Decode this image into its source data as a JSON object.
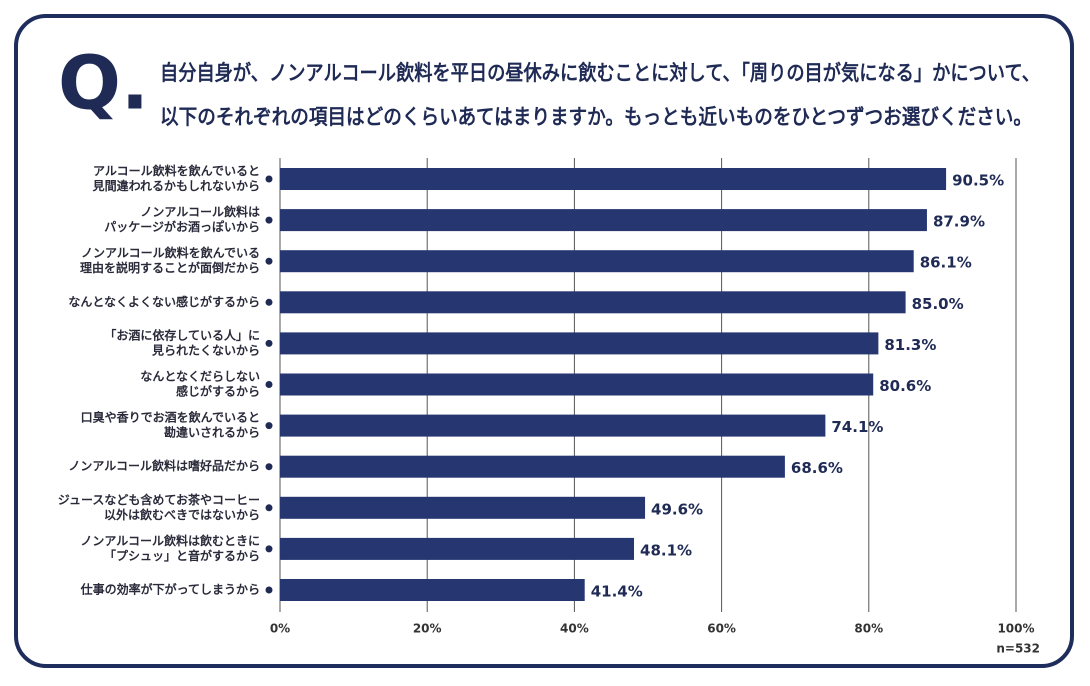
{
  "chart_data": {
    "type": "barh",
    "label": "Q.",
    "title": [
      "自分自身が、ノンアルコール飲料を平日の昼休みに飲むことに対して、「周りの目が気になる」かについて、",
      "以下のそれぞれの項目はどのくらいあてはまりますか。もっとも近いものをひとつずつお選びください。"
    ],
    "categories": [
      [
        "アルコール飲料を飲んでいると",
        "見間違われるかもしれないから"
      ],
      [
        "ノンアルコール飲料は",
        "パッケージがお酒っぽいから"
      ],
      [
        "ノンアルコール飲料を飲んでいる",
        "理由を説明することが面倒だから"
      ],
      [
        "なんとなくよくない感じがするから"
      ],
      [
        "「お酒に依存している人」に",
        "見られたくないから"
      ],
      [
        "なんとなくだらしない",
        "感じがするから"
      ],
      [
        "口臭や香りでお酒を飲んでいると",
        "勘違いされるから"
      ],
      [
        "ノンアルコール飲料は嗜好品だから"
      ],
      [
        "ジュースなども含めてお茶やコーヒー",
        "以外は飲むべきではないから"
      ],
      [
        "ノンアルコール飲料は飲むときに",
        "「プシュッ」と音がするから"
      ],
      [
        "仕事の効率が下がってしまうから"
      ]
    ],
    "values": [
      90.5,
      87.9,
      86.1,
      85.0,
      81.3,
      80.6,
      74.1,
      68.6,
      49.6,
      48.1,
      41.4
    ],
    "value_labels": [
      "90.5%",
      "87.9%",
      "86.1%",
      "85.0%",
      "81.3%",
      "80.6%",
      "74.1%",
      "68.6%",
      "49.6%",
      "48.1%",
      "41.4%"
    ],
    "color": "#253671",
    "xlim": [
      0,
      100
    ],
    "xticks": [
      {
        "value": 0,
        "label": "0%"
      },
      {
        "value": 20,
        "label": "20%"
      },
      {
        "value": 40,
        "label": "40%"
      },
      {
        "value": 60,
        "label": "60%"
      },
      {
        "value": 80,
        "label": "80%"
      },
      {
        "value": 100,
        "label": "100%"
      }
    ],
    "grid": true,
    "note": "n=532"
  }
}
